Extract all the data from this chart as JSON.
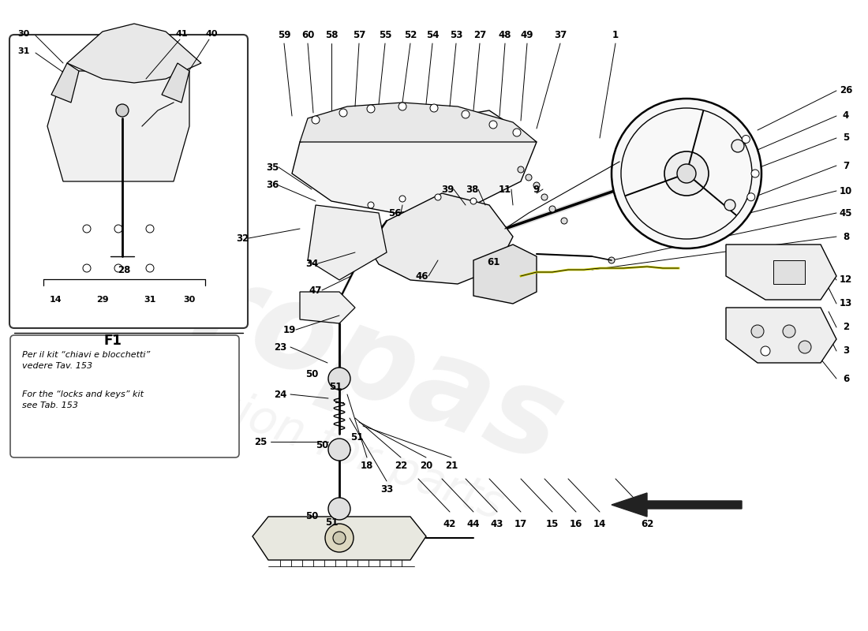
{
  "background_color": "#ffffff",
  "line_color": "#000000",
  "watermark1": "europas",
  "watermark2": "a passion for parts",
  "note_it": "Per il kit “chiavi e blocchetti”\nvedere Tav. 153",
  "note_en": "For the “locks and keys” kit\nsee Tab. 153",
  "f1_label": "F1",
  "f1_bracket": "28",
  "f1_items": [
    "14",
    "29",
    "31",
    "30"
  ],
  "top_labels": [
    "59",
    "60",
    "58",
    "57",
    "55",
    "52",
    "54",
    "53",
    "27",
    "48",
    "49",
    "37",
    "1"
  ],
  "right_labels": [
    "26",
    "4",
    "5",
    "7",
    "10",
    "45",
    "8",
    "12",
    "13",
    "2",
    "3",
    "6"
  ],
  "figsize": [
    11.0,
    8.0
  ],
  "dpi": 100
}
